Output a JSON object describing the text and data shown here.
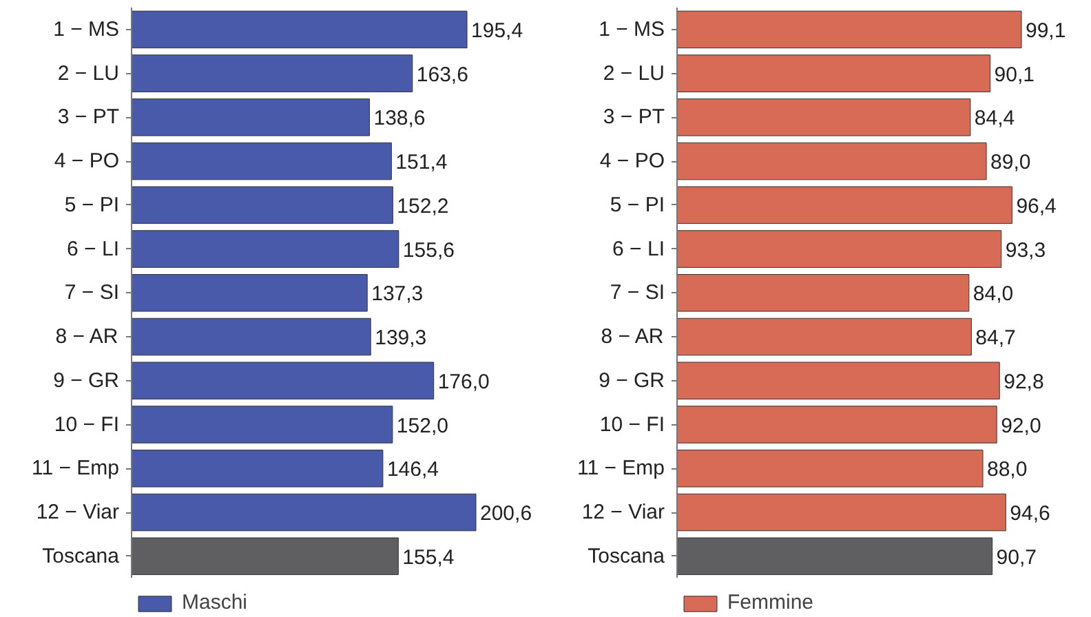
{
  "chart_data": [
    {
      "type": "bar",
      "orientation": "horizontal",
      "categories": [
        "1 − MS",
        "2 − LU",
        "3 − PT",
        "4 − PO",
        "5 − PI",
        "6 − LI",
        "7 − SI",
        "8 − AR",
        "9 − GR",
        "10 − FI",
        "11 − Emp",
        "12 − Viar",
        "Toscana"
      ],
      "grid": false,
      "legend": "bottom",
      "series": [
        {
          "name": "Maschi",
          "color": "#4a5aab",
          "colors": [
            "#4a5aab",
            "#4a5aab",
            "#4a5aab",
            "#4a5aab",
            "#4a5aab",
            "#4a5aab",
            "#4a5aab",
            "#4a5aab",
            "#4a5aab",
            "#4a5aab",
            "#4a5aab",
            "#4a5aab",
            "#5f5f62"
          ],
          "values": [
            195.4,
            163.6,
            138.6,
            151.4,
            152.2,
            155.6,
            137.3,
            139.3,
            176.0,
            152.0,
            146.4,
            200.6,
            155.4
          ],
          "value_labels": [
            "195,4",
            "163,6",
            "138,6",
            "151,4",
            "152,2",
            "155,6",
            "137,3",
            "139,3",
            "176,0",
            "152,0",
            "146,4",
            "200,6",
            "155,4"
          ]
        }
      ]
    },
    {
      "type": "bar",
      "orientation": "horizontal",
      "categories": [
        "1 − MS",
        "2 − LU",
        "3 − PT",
        "4 − PO",
        "5 − PI",
        "6 − LI",
        "7 − SI",
        "8 − AR",
        "9 − GR",
        "10 − FI",
        "11 − Emp",
        "12 − Viar",
        "Toscana"
      ],
      "grid": false,
      "legend": "bottom",
      "series": [
        {
          "name": "Femmine",
          "color": "#d86b55",
          "colors": [
            "#d86b55",
            "#d86b55",
            "#d86b55",
            "#d86b55",
            "#d86b55",
            "#d86b55",
            "#d86b55",
            "#d86b55",
            "#d86b55",
            "#d86b55",
            "#d86b55",
            "#d86b55",
            "#5f5f62"
          ],
          "values": [
            99.1,
            90.1,
            84.4,
            89.0,
            96.4,
            93.3,
            84.0,
            84.7,
            92.8,
            92.0,
            88.0,
            94.6,
            90.7
          ],
          "value_labels": [
            "99,1",
            "90,1",
            "84,4",
            "89,0",
            "96,4",
            "93,3",
            "84,0",
            "84,7",
            "92,8",
            "92,0",
            "88,0",
            "94,6",
            "90,7"
          ]
        }
      ]
    }
  ]
}
